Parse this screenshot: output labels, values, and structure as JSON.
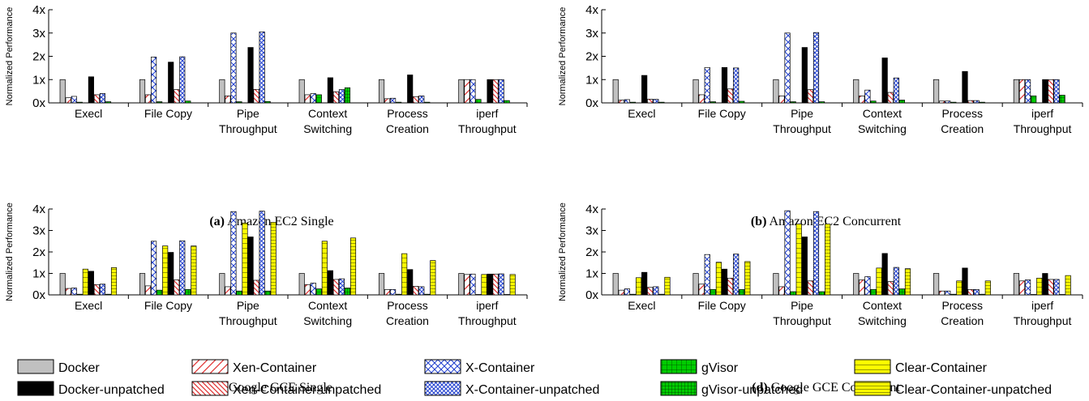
{
  "chart_data": [
    {
      "type": "bar",
      "caption_label": "(a)",
      "caption_text": "Amazon EC2 Single",
      "ylabel": "Normalized Performance",
      "ylim": [
        0,
        4
      ],
      "yticks": [
        "0x",
        "1x",
        "2x",
        "3x",
        "4x"
      ],
      "categories": [
        [
          "Execl"
        ],
        [
          "File Copy"
        ],
        [
          "Pipe",
          "Throughput"
        ],
        [
          "Context",
          "Switching"
        ],
        [
          "Process",
          "Creation"
        ],
        [
          "iperf",
          "Throughput"
        ]
      ],
      "series": [
        {
          "name": "Docker",
          "values": [
            1.0,
            1.0,
            1.0,
            1.0,
            1.0,
            1.0
          ]
        },
        {
          "name": "Xen-Container",
          "values": [
            0.22,
            0.35,
            0.3,
            0.35,
            0.18,
            1.0
          ]
        },
        {
          "name": "X-Container",
          "values": [
            0.28,
            1.97,
            3.0,
            0.4,
            0.2,
            1.0
          ]
        },
        {
          "name": "gVisor",
          "values": [
            0.03,
            0.05,
            0.05,
            0.35,
            0.03,
            0.15
          ]
        },
        {
          "name": "Clear-Container",
          "values": [
            0,
            0,
            0,
            0,
            0,
            0
          ]
        },
        {
          "name": "Docker-unpatched",
          "values": [
            1.12,
            1.75,
            2.38,
            1.08,
            1.2,
            1.0
          ]
        },
        {
          "name": "Xen-Container-unpatched",
          "values": [
            0.35,
            0.57,
            0.58,
            0.48,
            0.27,
            1.0
          ]
        },
        {
          "name": "X-Container-unpatched",
          "values": [
            0.4,
            1.98,
            3.05,
            0.57,
            0.3,
            1.0
          ]
        },
        {
          "name": "gVisor-unpatched",
          "values": [
            0.05,
            0.08,
            0.06,
            0.65,
            0.03,
            0.1
          ]
        },
        {
          "name": "Clear-Container-unpatched",
          "values": [
            0,
            0,
            0,
            0,
            0,
            0
          ]
        }
      ]
    },
    {
      "type": "bar",
      "caption_label": "(b)",
      "caption_text": "Amazon EC2 Concurrent",
      "ylabel": "Normalized Performance",
      "ylim": [
        0,
        4
      ],
      "yticks": [
        "0x",
        "1x",
        "2x",
        "3x",
        "4x"
      ],
      "categories": [
        [
          "Execl"
        ],
        [
          "File Copy"
        ],
        [
          "Pipe",
          "Throughput"
        ],
        [
          "Context",
          "Switching"
        ],
        [
          "Process",
          "Creation"
        ],
        [
          "iperf",
          "Throughput"
        ]
      ],
      "series": [
        {
          "name": "Docker",
          "values": [
            1.0,
            1.0,
            1.0,
            1.0,
            1.0,
            1.0
          ]
        },
        {
          "name": "Xen-Container",
          "values": [
            0.12,
            0.35,
            0.3,
            0.3,
            0.08,
            1.0
          ]
        },
        {
          "name": "X-Container",
          "values": [
            0.14,
            1.52,
            3.0,
            0.55,
            0.08,
            1.0
          ]
        },
        {
          "name": "gVisor",
          "values": [
            0.03,
            0.05,
            0.05,
            0.08,
            0.03,
            0.3
          ]
        },
        {
          "name": "Clear-Container",
          "values": [
            0,
            0,
            0,
            0,
            0,
            0
          ]
        },
        {
          "name": "Docker-unpatched",
          "values": [
            1.18,
            1.52,
            2.38,
            1.93,
            1.35,
            1.0
          ]
        },
        {
          "name": "Xen-Container-unpatched",
          "values": [
            0.16,
            0.6,
            0.57,
            0.45,
            0.1,
            1.0
          ]
        },
        {
          "name": "X-Container-unpatched",
          "values": [
            0.15,
            1.5,
            3.02,
            1.07,
            0.1,
            1.0
          ]
        },
        {
          "name": "gVisor-unpatched",
          "values": [
            0.03,
            0.07,
            0.05,
            0.12,
            0.03,
            0.33
          ]
        },
        {
          "name": "Clear-Container-unpatched",
          "values": [
            0,
            0,
            0,
            0,
            0,
            0
          ]
        }
      ]
    },
    {
      "type": "bar",
      "caption_label": "(c)",
      "caption_text": "Google GCE Single",
      "ylabel": "Normalized Performance",
      "ylim": [
        0,
        4
      ],
      "yticks": [
        "0x",
        "1x",
        "2x",
        "3x",
        "4x"
      ],
      "categories": [
        [
          "Execl"
        ],
        [
          "File Copy"
        ],
        [
          "Pipe",
          "Throughput"
        ],
        [
          "Context",
          "Switching"
        ],
        [
          "Process",
          "Creation"
        ],
        [
          "iperf",
          "Throughput"
        ]
      ],
      "series": [
        {
          "name": "Docker",
          "values": [
            1.0,
            1.0,
            1.0,
            1.0,
            1.0,
            1.0
          ]
        },
        {
          "name": "Xen-Container",
          "values": [
            0.3,
            0.42,
            0.38,
            0.48,
            0.25,
            0.95
          ]
        },
        {
          "name": "X-Container",
          "values": [
            0.32,
            2.5,
            3.88,
            0.55,
            0.25,
            0.97
          ]
        },
        {
          "name": "gVisor",
          "values": [
            0.03,
            0.22,
            0.18,
            0.28,
            0.03,
            0.02
          ]
        },
        {
          "name": "Clear-Container",
          "values": [
            1.2,
            2.28,
            3.35,
            2.5,
            1.92,
            0.95
          ]
        },
        {
          "name": "Docker-unpatched",
          "values": [
            1.1,
            1.98,
            2.7,
            1.13,
            1.18,
            0.97
          ]
        },
        {
          "name": "Xen-Container-unpatched",
          "values": [
            0.48,
            0.7,
            0.68,
            0.72,
            0.4,
            0.97
          ]
        },
        {
          "name": "X-Container-unpatched",
          "values": [
            0.5,
            2.52,
            3.9,
            0.75,
            0.38,
            0.98
          ]
        },
        {
          "name": "gVisor-unpatched",
          "values": [
            0.03,
            0.25,
            0.18,
            0.32,
            0.03,
            0.02
          ]
        },
        {
          "name": "Clear-Container-unpatched",
          "values": [
            1.27,
            2.28,
            3.38,
            2.65,
            1.6,
            0.95
          ]
        }
      ]
    },
    {
      "type": "bar",
      "caption_label": "(d)",
      "caption_text": "Google GCE Concurrent",
      "ylabel": "Normalized Performance",
      "ylim": [
        0,
        4
      ],
      "yticks": [
        "0x",
        "1x",
        "2x",
        "3x",
        "4x"
      ],
      "categories": [
        [
          "Execl"
        ],
        [
          "File Copy"
        ],
        [
          "Pipe",
          "Throughput"
        ],
        [
          "Context",
          "Switching"
        ],
        [
          "Process",
          "Creation"
        ],
        [
          "iperf",
          "Throughput"
        ]
      ],
      "series": [
        {
          "name": "Docker",
          "values": [
            1.0,
            1.0,
            1.0,
            1.0,
            1.0,
            1.0
          ]
        },
        {
          "name": "Xen-Container",
          "values": [
            0.22,
            0.5,
            0.38,
            0.7,
            0.18,
            0.65
          ]
        },
        {
          "name": "X-Container",
          "values": [
            0.28,
            1.88,
            3.92,
            0.85,
            0.18,
            0.7
          ]
        },
        {
          "name": "gVisor",
          "values": [
            0.03,
            0.25,
            0.15,
            0.25,
            0.03,
            0.02
          ]
        },
        {
          "name": "Clear-Container",
          "values": [
            0.8,
            1.52,
            3.3,
            1.25,
            0.65,
            0.78
          ]
        },
        {
          "name": "Docker-unpatched",
          "values": [
            1.05,
            1.2,
            2.7,
            1.93,
            1.25,
            1.0
          ]
        },
        {
          "name": "Xen-Container-unpatched",
          "values": [
            0.35,
            0.78,
            0.65,
            0.62,
            0.25,
            0.72
          ]
        },
        {
          "name": "X-Container-unpatched",
          "values": [
            0.38,
            1.9,
            3.88,
            1.28,
            0.25,
            0.72
          ]
        },
        {
          "name": "gVisor-unpatched",
          "values": [
            0.03,
            0.25,
            0.15,
            0.28,
            0.03,
            0.02
          ]
        },
        {
          "name": "Clear-Container-unpatched",
          "values": [
            0.82,
            1.55,
            3.3,
            1.22,
            0.65,
            0.9
          ]
        }
      ]
    }
  ],
  "legend": {
    "placement": "bottom",
    "entries": [
      {
        "name": "Docker",
        "fill": "#c0c0c0",
        "pattern": "solid"
      },
      {
        "name": "Xen-Container",
        "fill": "#ffffff",
        "pattern": "diag-sparse"
      },
      {
        "name": "X-Container",
        "fill": "#ffffff",
        "pattern": "cross"
      },
      {
        "name": "gVisor",
        "fill": "#00cc00",
        "pattern": "grid"
      },
      {
        "name": "Clear-Container",
        "fill": "#ffff00",
        "pattern": "hlines"
      },
      {
        "name": "Docker-unpatched",
        "fill": "#000000",
        "pattern": "solid"
      },
      {
        "name": "Xen-Container-unpatched",
        "fill": "#ffffff",
        "pattern": "diag-dense"
      },
      {
        "name": "X-Container-unpatched",
        "fill": "#ffffff",
        "pattern": "cross-dense"
      },
      {
        "name": "gVisor-unpatched",
        "fill": "#00cc00",
        "pattern": "grid-dense"
      },
      {
        "name": "Clear-Container-unpatched",
        "fill": "#ffff00",
        "pattern": "hlines-dense"
      }
    ]
  },
  "colors": {
    "docker": "#c0c0c0",
    "docker_unpatched": "#000000",
    "xen_line": "#e03030",
    "x_line": "#1f3fcf",
    "gvisor": "#00cc00",
    "clear": "#ffff00"
  }
}
